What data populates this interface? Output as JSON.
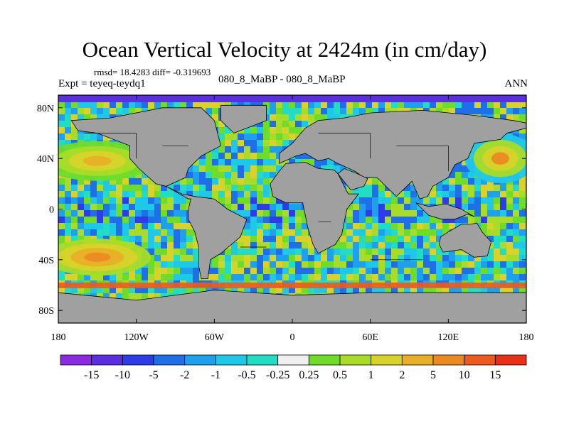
{
  "title": "Ocean Vertical Velocity at 2424m (in cm/day)",
  "stats_text": "rmsd= 18.4283 diff= -0.319693",
  "experiment_text": "Expt = teyeq-teydq1",
  "subtitle": "080_8_MaBP - 080_8_MaBP",
  "season": "ANN",
  "y_ticks": [
    {
      "label": "80N",
      "lat": 80
    },
    {
      "label": "40N",
      "lat": 40
    },
    {
      "label": "0",
      "lat": 0
    },
    {
      "label": "40S",
      "lat": -40
    },
    {
      "label": "80S",
      "lat": -80
    }
  ],
  "x_ticks": [
    {
      "label": "180",
      "lon": -180
    },
    {
      "label": "120W",
      "lon": -120
    },
    {
      "label": "60W",
      "lon": -60
    },
    {
      "label": "0",
      "lon": 0
    },
    {
      "label": "60E",
      "lon": 60
    },
    {
      "label": "120E",
      "lon": 120
    },
    {
      "label": "180",
      "lon": 180
    }
  ],
  "colorbar": {
    "colors": [
      "#8a2be2",
      "#5b2ee0",
      "#2c3ce6",
      "#1f6fe8",
      "#1ea0ec",
      "#20c8e8",
      "#22dcc4",
      "#f0f0f0",
      "#6fdc2a",
      "#a9dc28",
      "#d8d22a",
      "#e8b028",
      "#ec8a22",
      "#ec5a1e",
      "#e83018"
    ],
    "labels": [
      "-15",
      "-10",
      "-5",
      "-2",
      "-1",
      "-0.5",
      "-0.25",
      "0.25",
      "0.5",
      "1",
      "2",
      "5",
      "10",
      "15"
    ]
  },
  "map_colors": {
    "land": "#a0a0a0",
    "coast": "#000000",
    "missing": "#ffffff"
  }
}
